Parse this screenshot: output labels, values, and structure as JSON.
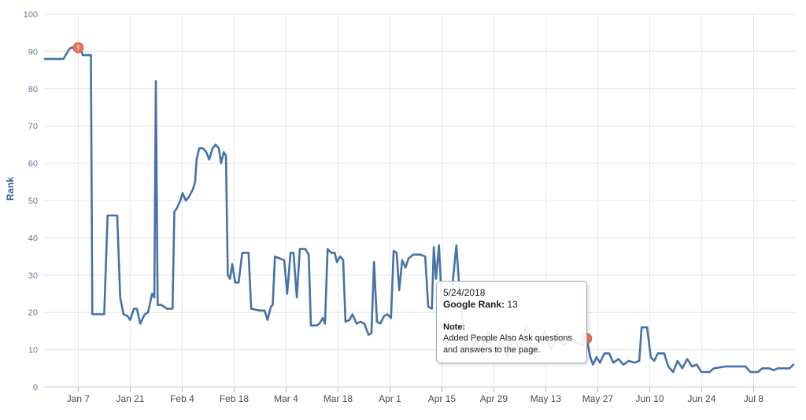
{
  "chart_data": {
    "type": "line",
    "title": "",
    "xlabel": "",
    "ylabel": "Rank",
    "ylim": [
      0,
      100
    ],
    "grid": true,
    "legend": "none",
    "y_ticks": [
      0,
      10,
      20,
      30,
      40,
      50,
      60,
      70,
      80,
      90,
      100
    ],
    "x_ticks": [
      {
        "label": "Jan 7",
        "day": 9
      },
      {
        "label": "Jan 21",
        "day": 23
      },
      {
        "label": "Feb 4",
        "day": 37
      },
      {
        "label": "Feb 18",
        "day": 51
      },
      {
        "label": "Mar 4",
        "day": 65
      },
      {
        "label": "Mar 18",
        "day": 79
      },
      {
        "label": "Apr 1",
        "day": 93
      },
      {
        "label": "Apr 15",
        "day": 107
      },
      {
        "label": "Apr 29",
        "day": 121
      },
      {
        "label": "May 13",
        "day": 135
      },
      {
        "label": "May 27",
        "day": 149
      },
      {
        "label": "Jun 10",
        "day": 163
      },
      {
        "label": "Jun 24",
        "day": 177
      },
      {
        "label": "Jul 8",
        "day": 191
      }
    ],
    "series": [
      {
        "name": "Google Rank",
        "color": "#4572a7",
        "points": [
          [
            0,
            88
          ],
          [
            5,
            88
          ],
          [
            6.5,
            90.5
          ],
          [
            7,
            91
          ],
          [
            9.6,
            91
          ],
          [
            10.2,
            89
          ],
          [
            12.4,
            89
          ],
          [
            12.8,
            19.5
          ],
          [
            16,
            19.5
          ],
          [
            16.9,
            46
          ],
          [
            19.5,
            46
          ],
          [
            20.3,
            24
          ],
          [
            21.2,
            19.5
          ],
          [
            22.3,
            19
          ],
          [
            23,
            18
          ],
          [
            24,
            21
          ],
          [
            24.8,
            21
          ],
          [
            25.7,
            17
          ],
          [
            26.9,
            19.5
          ],
          [
            27.8,
            20
          ],
          [
            28.9,
            25
          ],
          [
            29.5,
            24
          ],
          [
            29.9,
            82
          ],
          [
            30.4,
            22
          ],
          [
            31.4,
            22
          ],
          [
            32.9,
            21
          ],
          [
            34.4,
            21
          ],
          [
            34.9,
            47
          ],
          [
            35.6,
            48
          ],
          [
            36.5,
            50
          ],
          [
            37.1,
            52
          ],
          [
            38,
            50
          ],
          [
            38.8,
            51
          ],
          [
            39.9,
            53
          ],
          [
            40.5,
            55
          ],
          [
            40.9,
            61
          ],
          [
            41.6,
            64
          ],
          [
            42.6,
            64
          ],
          [
            43.5,
            63
          ],
          [
            44.3,
            61
          ],
          [
            45.2,
            64
          ],
          [
            46,
            65
          ],
          [
            46.9,
            64
          ],
          [
            47.5,
            60
          ],
          [
            48.2,
            63
          ],
          [
            48.8,
            62
          ],
          [
            49.3,
            30
          ],
          [
            49.9,
            29
          ],
          [
            50.5,
            33
          ],
          [
            51.3,
            28
          ],
          [
            52.2,
            28
          ],
          [
            53.2,
            36
          ],
          [
            54.9,
            36
          ],
          [
            55.6,
            21
          ],
          [
            57.9,
            20.5
          ],
          [
            59.2,
            20.5
          ],
          [
            60,
            18
          ],
          [
            60.9,
            21.5
          ],
          [
            61.4,
            22
          ],
          [
            62,
            35
          ],
          [
            63.2,
            34.5
          ],
          [
            64.5,
            34
          ],
          [
            65.3,
            25
          ],
          [
            66.2,
            36
          ],
          [
            67,
            36
          ],
          [
            67.9,
            24
          ],
          [
            68.7,
            37
          ],
          [
            70.2,
            37
          ],
          [
            71.1,
            35.5
          ],
          [
            71.7,
            16.5
          ],
          [
            73.2,
            16.5
          ],
          [
            74,
            17
          ],
          [
            74.9,
            18.5
          ],
          [
            75.5,
            17
          ],
          [
            76.2,
            37
          ],
          [
            77.2,
            36
          ],
          [
            78.1,
            36
          ],
          [
            78.7,
            33.5
          ],
          [
            79.6,
            35
          ],
          [
            80.4,
            34
          ],
          [
            81,
            17.5
          ],
          [
            82.1,
            18
          ],
          [
            82.9,
            19.5
          ],
          [
            84,
            17
          ],
          [
            85.1,
            17.5
          ],
          [
            86.1,
            17
          ],
          [
            87.2,
            14
          ],
          [
            88,
            14.5
          ],
          [
            88.7,
            33.5
          ],
          [
            89.5,
            17.5
          ],
          [
            90.4,
            17
          ],
          [
            91.4,
            19
          ],
          [
            92.3,
            19.5
          ],
          [
            93.3,
            18.5
          ],
          [
            94,
            36.5
          ],
          [
            94.8,
            36
          ],
          [
            95.5,
            26
          ],
          [
            96.3,
            34
          ],
          [
            97.2,
            32
          ],
          [
            98,
            34.5
          ],
          [
            99.3,
            35.5
          ],
          [
            101.2,
            35.5
          ],
          [
            102.5,
            35
          ],
          [
            103.3,
            21.5
          ],
          [
            104.3,
            21
          ],
          [
            104.8,
            37.5
          ],
          [
            105.4,
            29
          ],
          [
            106.2,
            38
          ],
          [
            107,
            22
          ],
          [
            108,
            21
          ],
          [
            109.3,
            21
          ],
          [
            110.1,
            30
          ],
          [
            110.9,
            38
          ],
          [
            111.8,
            25
          ],
          [
            113.1,
            12
          ],
          [
            114.8,
            9
          ],
          [
            116.2,
            13
          ],
          [
            117.7,
            10
          ],
          [
            119.4,
            15
          ],
          [
            121.1,
            9
          ],
          [
            122.8,
            12
          ],
          [
            124.7,
            8
          ],
          [
            126.2,
            14
          ],
          [
            127.9,
            10
          ],
          [
            129.6,
            16
          ],
          [
            131.3,
            9
          ],
          [
            133,
            12
          ],
          [
            134.7,
            15
          ],
          [
            136.4,
            10
          ],
          [
            138.1,
            13
          ],
          [
            139.8,
            11
          ],
          [
            141.5,
            14
          ],
          [
            143.2,
            12
          ],
          [
            144.9,
            11
          ],
          [
            146,
            13
          ],
          [
            147,
            8
          ],
          [
            147.7,
            6
          ],
          [
            148.7,
            8
          ],
          [
            149.6,
            6.5
          ],
          [
            150.8,
            9
          ],
          [
            152.1,
            9
          ],
          [
            153.2,
            6.5
          ],
          [
            154.6,
            7.5
          ],
          [
            155.9,
            6
          ],
          [
            157.4,
            7
          ],
          [
            158.9,
            6.5
          ],
          [
            160.2,
            7
          ],
          [
            160.8,
            16
          ],
          [
            162.3,
            16
          ],
          [
            163.3,
            8
          ],
          [
            164.2,
            7
          ],
          [
            165.2,
            9
          ],
          [
            166.9,
            9
          ],
          [
            168,
            5.5
          ],
          [
            169.3,
            4
          ],
          [
            170.5,
            7
          ],
          [
            171.8,
            5
          ],
          [
            173.1,
            7.5
          ],
          [
            174.4,
            5.5
          ],
          [
            175.7,
            6
          ],
          [
            176.9,
            4
          ],
          [
            179.1,
            4
          ],
          [
            180.3,
            5
          ],
          [
            183.5,
            5.5
          ],
          [
            188.8,
            5.5
          ],
          [
            190.1,
            4
          ],
          [
            192.2,
            4
          ],
          [
            193.3,
            5
          ],
          [
            195.2,
            5
          ],
          [
            196.4,
            4.5
          ],
          [
            197.5,
            5
          ],
          [
            200.7,
            5
          ],
          [
            201.7,
            6
          ]
        ]
      }
    ],
    "annotations": [
      {
        "day": 9,
        "rank": 91,
        "symbol": "!"
      },
      {
        "day": 146,
        "rank": 13,
        "symbol": "!",
        "date": "5/24/2018"
      }
    ]
  },
  "tooltip": {
    "date": "5/24/2018",
    "rank_label": "Google Rank:",
    "rank_value": " 13",
    "note_label": "Note:",
    "note_text": "Added People Also Ask questions and answers to the page."
  },
  "colors": {
    "line": "#4572a7",
    "grid": "#e4e6e8",
    "axis_line": "#c6cdd4",
    "tick": "#aab4be",
    "y_tick_label": "#5b7a9d",
    "x_tick_label": "#4d4d4d",
    "ylabel_title": "#30619b",
    "marker_fill": "#e8745c",
    "marker_stroke": "#cf5f48",
    "marker_symbol": "#ffffff"
  }
}
